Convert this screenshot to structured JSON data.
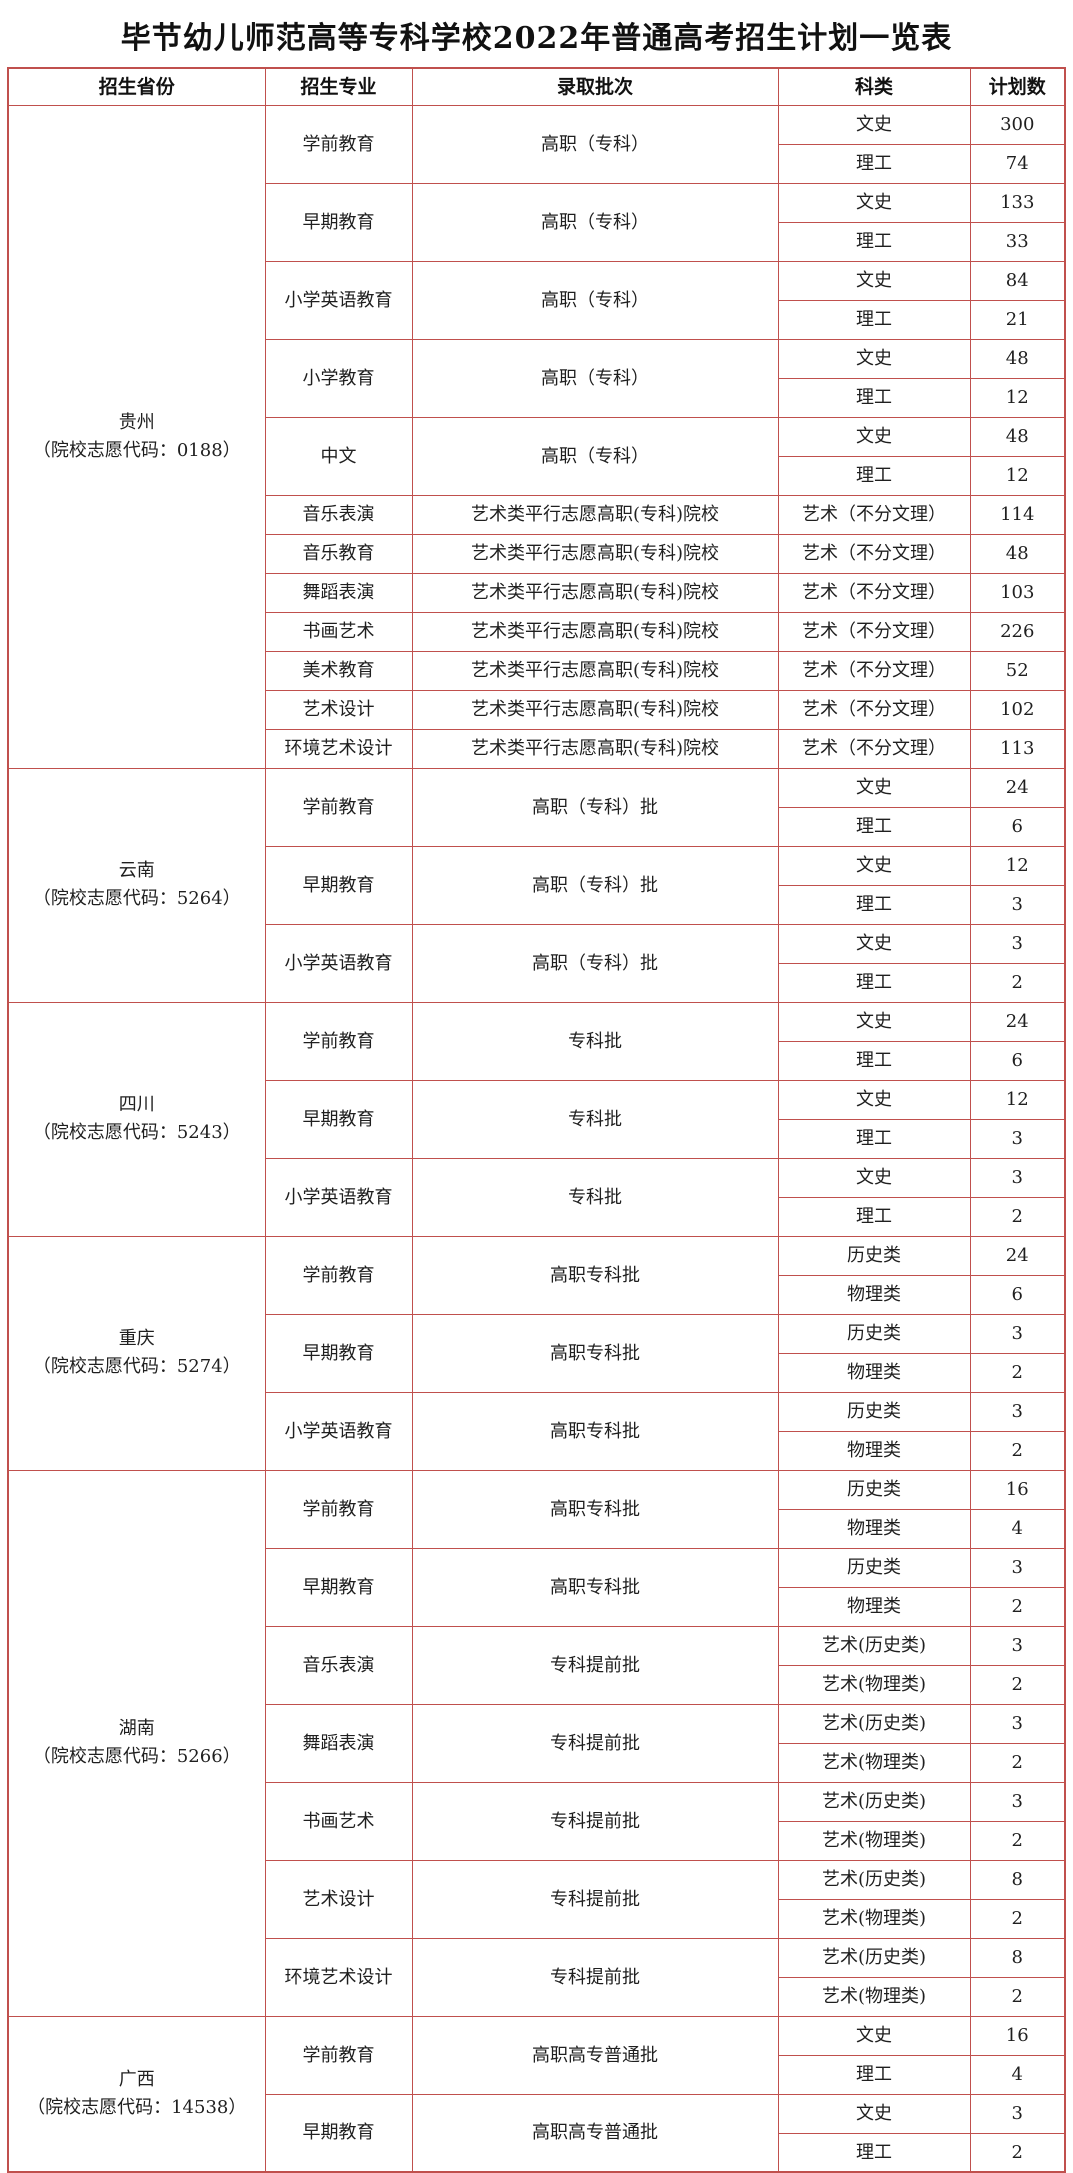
{
  "title": "毕节幼儿师范高等专科学校2022年普通高考招生计划一览表",
  "columns": [
    "招生省份",
    "招生专业",
    "录取批次",
    "科类",
    "计划数"
  ],
  "border_color": "#c0504d",
  "provinces": [
    {
      "name": "贵州",
      "code_line": "（院校志愿代码：0188）",
      "majors": [
        {
          "major": "学前教育",
          "batch": "高职（专科）",
          "entries": [
            {
              "cat": "文史",
              "num": "300"
            },
            {
              "cat": "理工",
              "num": "74"
            }
          ]
        },
        {
          "major": "早期教育",
          "batch": "高职（专科）",
          "entries": [
            {
              "cat": "文史",
              "num": "133"
            },
            {
              "cat": "理工",
              "num": "33"
            }
          ]
        },
        {
          "major": "小学英语教育",
          "batch": "高职（专科）",
          "entries": [
            {
              "cat": "文史",
              "num": "84"
            },
            {
              "cat": "理工",
              "num": "21"
            }
          ]
        },
        {
          "major": "小学教育",
          "batch": "高职（专科）",
          "entries": [
            {
              "cat": "文史",
              "num": "48"
            },
            {
              "cat": "理工",
              "num": "12"
            }
          ]
        },
        {
          "major": "中文",
          "batch": "高职（专科）",
          "entries": [
            {
              "cat": "文史",
              "num": "48"
            },
            {
              "cat": "理工",
              "num": "12"
            }
          ]
        },
        {
          "major": "音乐表演",
          "batch": "艺术类平行志愿高职(专科)院校",
          "entries": [
            {
              "cat": "艺术（不分文理）",
              "num": "114"
            }
          ]
        },
        {
          "major": "音乐教育",
          "batch": "艺术类平行志愿高职(专科)院校",
          "entries": [
            {
              "cat": "艺术（不分文理）",
              "num": "48"
            }
          ]
        },
        {
          "major": "舞蹈表演",
          "batch": "艺术类平行志愿高职(专科)院校",
          "entries": [
            {
              "cat": "艺术（不分文理）",
              "num": "103"
            }
          ]
        },
        {
          "major": "书画艺术",
          "batch": "艺术类平行志愿高职(专科)院校",
          "entries": [
            {
              "cat": "艺术（不分文理）",
              "num": "226"
            }
          ]
        },
        {
          "major": "美术教育",
          "batch": "艺术类平行志愿高职(专科)院校",
          "entries": [
            {
              "cat": "艺术（不分文理）",
              "num": "52"
            }
          ]
        },
        {
          "major": "艺术设计",
          "batch": "艺术类平行志愿高职(专科)院校",
          "entries": [
            {
              "cat": "艺术（不分文理）",
              "num": "102"
            }
          ]
        },
        {
          "major": "环境艺术设计",
          "batch": "艺术类平行志愿高职(专科)院校",
          "entries": [
            {
              "cat": "艺术（不分文理）",
              "num": "113"
            }
          ]
        }
      ]
    },
    {
      "name": "云南",
      "code_line": "（院校志愿代码：5264）",
      "majors": [
        {
          "major": "学前教育",
          "batch": "高职（专科）批",
          "entries": [
            {
              "cat": "文史",
              "num": "24"
            },
            {
              "cat": "理工",
              "num": "6"
            }
          ]
        },
        {
          "major": "早期教育",
          "batch": "高职（专科）批",
          "entries": [
            {
              "cat": "文史",
              "num": "12"
            },
            {
              "cat": "理工",
              "num": "3"
            }
          ]
        },
        {
          "major": "小学英语教育",
          "batch": "高职（专科）批",
          "entries": [
            {
              "cat": "文史",
              "num": "3"
            },
            {
              "cat": "理工",
              "num": "2"
            }
          ]
        }
      ]
    },
    {
      "name": "四川",
      "code_line": "（院校志愿代码：5243）",
      "majors": [
        {
          "major": "学前教育",
          "batch": "专科批",
          "entries": [
            {
              "cat": "文史",
              "num": "24"
            },
            {
              "cat": "理工",
              "num": "6"
            }
          ]
        },
        {
          "major": "早期教育",
          "batch": "专科批",
          "entries": [
            {
              "cat": "文史",
              "num": "12"
            },
            {
              "cat": "理工",
              "num": "3"
            }
          ]
        },
        {
          "major": "小学英语教育",
          "batch": "专科批",
          "entries": [
            {
              "cat": "文史",
              "num": "3"
            },
            {
              "cat": "理工",
              "num": "2"
            }
          ]
        }
      ]
    },
    {
      "name": "重庆",
      "code_line": "（院校志愿代码：5274）",
      "majors": [
        {
          "major": "学前教育",
          "batch": "高职专科批",
          "entries": [
            {
              "cat": "历史类",
              "num": "24"
            },
            {
              "cat": "物理类",
              "num": "6"
            }
          ]
        },
        {
          "major": "早期教育",
          "batch": "高职专科批",
          "entries": [
            {
              "cat": "历史类",
              "num": "3"
            },
            {
              "cat": "物理类",
              "num": "2"
            }
          ]
        },
        {
          "major": "小学英语教育",
          "batch": "高职专科批",
          "entries": [
            {
              "cat": "历史类",
              "num": "3"
            },
            {
              "cat": "物理类",
              "num": "2"
            }
          ]
        }
      ]
    },
    {
      "name": "湖南",
      "code_line": "（院校志愿代码：5266）",
      "majors": [
        {
          "major": "学前教育",
          "batch": "高职专科批",
          "entries": [
            {
              "cat": "历史类",
              "num": "16"
            },
            {
              "cat": "物理类",
              "num": "4"
            }
          ]
        },
        {
          "major": "早期教育",
          "batch": "高职专科批",
          "entries": [
            {
              "cat": "历史类",
              "num": "3"
            },
            {
              "cat": "物理类",
              "num": "2"
            }
          ]
        },
        {
          "major": "音乐表演",
          "batch": "专科提前批",
          "entries": [
            {
              "cat": "艺术(历史类)",
              "num": "3"
            },
            {
              "cat": "艺术(物理类)",
              "num": "2"
            }
          ]
        },
        {
          "major": "舞蹈表演",
          "batch": "专科提前批",
          "entries": [
            {
              "cat": "艺术(历史类)",
              "num": "3"
            },
            {
              "cat": "艺术(物理类)",
              "num": "2"
            }
          ]
        },
        {
          "major": "书画艺术",
          "batch": "专科提前批",
          "entries": [
            {
              "cat": "艺术(历史类)",
              "num": "3"
            },
            {
              "cat": "艺术(物理类)",
              "num": "2"
            }
          ]
        },
        {
          "major": "艺术设计",
          "batch": "专科提前批",
          "entries": [
            {
              "cat": "艺术(历史类)",
              "num": "8"
            },
            {
              "cat": "艺术(物理类)",
              "num": "2"
            }
          ]
        },
        {
          "major": "环境艺术设计",
          "batch": "专科提前批",
          "entries": [
            {
              "cat": "艺术(历史类)",
              "num": "8"
            },
            {
              "cat": "艺术(物理类)",
              "num": "2"
            }
          ]
        }
      ]
    },
    {
      "name": "广西",
      "code_line": "（院校志愿代码：14538）",
      "majors": [
        {
          "major": "学前教育",
          "batch": "高职高专普通批",
          "entries": [
            {
              "cat": "文史",
              "num": "16"
            },
            {
              "cat": "理工",
              "num": "4"
            }
          ]
        },
        {
          "major": "早期教育",
          "batch": "高职高专普通批",
          "entries": [
            {
              "cat": "文史",
              "num": "3"
            },
            {
              "cat": "理工",
              "num": "2"
            }
          ]
        }
      ]
    }
  ]
}
